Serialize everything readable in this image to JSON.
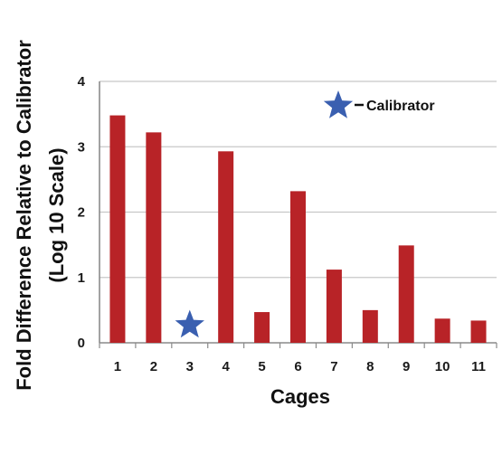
{
  "chart_data": {
    "type": "bar",
    "categories": [
      "1",
      "2",
      "3",
      "4",
      "5",
      "6",
      "7",
      "8",
      "9",
      "10",
      "11"
    ],
    "values": [
      3.48,
      3.22,
      null,
      2.93,
      0.47,
      2.32,
      1.12,
      0.5,
      1.49,
      0.37,
      0.34
    ],
    "calibrator": {
      "category": "3",
      "value": 0.27,
      "marker": "star"
    },
    "xlabel": "Cages",
    "ylabel_line1": "Fold Difference Relative to Calibrator",
    "ylabel_line2": "(Log 10 Scale)",
    "ylim": [
      0,
      4
    ],
    "yticks": [
      0,
      1,
      2,
      3,
      4
    ],
    "grid": "horizontal",
    "legend": {
      "label": "Calibrator",
      "marker": "star-icon",
      "placement": "top-right"
    },
    "colors": {
      "bar": "#b82327",
      "star": "#3a5fb0",
      "grid": "#c8c8c8",
      "axis": "#8a8a8a"
    }
  }
}
